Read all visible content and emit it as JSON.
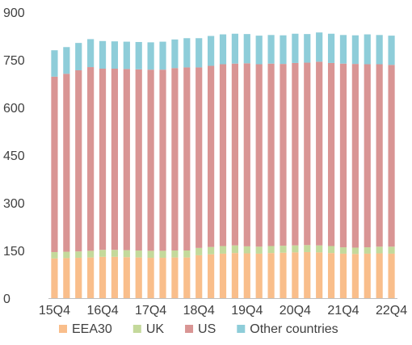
{
  "chart_data": {
    "type": "bar",
    "stacked": true,
    "categories": [
      "15Q4",
      "16Q1",
      "16Q2",
      "16Q3",
      "16Q4",
      "17Q1",
      "17Q2",
      "17Q3",
      "17Q4",
      "18Q1",
      "18Q2",
      "18Q3",
      "18Q4",
      "19Q1",
      "19Q2",
      "19Q3",
      "19Q4",
      "20Q1",
      "20Q2",
      "20Q3",
      "20Q4",
      "21Q1",
      "21Q2",
      "21Q3",
      "21Q4",
      "22Q1",
      "22Q2",
      "22Q3",
      "22Q4"
    ],
    "x_tick_labels": [
      "15Q4",
      "16Q4",
      "17Q4",
      "18Q4",
      "19Q4",
      "20Q4",
      "21Q4",
      "22Q4"
    ],
    "y_ticks": [
      0,
      150,
      300,
      450,
      600,
      750,
      900
    ],
    "ylim": [
      0,
      900
    ],
    "legend_position": "bottom",
    "series": [
      {
        "name": "EEA30",
        "color": "#f9be8b",
        "values": [
          125,
          126,
          127,
          128,
          130,
          130,
          129,
          128,
          127,
          127,
          128,
          128,
          135,
          138,
          140,
          142,
          141,
          140,
          142,
          143,
          144,
          145,
          144,
          142,
          140,
          139,
          140,
          141,
          140
        ]
      },
      {
        "name": "UK",
        "color": "#c4d99b",
        "values": [
          20,
          20,
          20,
          21,
          22,
          22,
          22,
          22,
          22,
          22,
          22,
          22,
          23,
          23,
          24,
          24,
          22,
          22,
          22,
          22,
          22,
          22,
          22,
          22,
          20,
          20,
          20,
          21,
          22
        ]
      },
      {
        "name": "US",
        "color": "#d99594",
        "values": [
          552,
          560,
          570,
          578,
          570,
          570,
          570,
          570,
          570,
          570,
          574,
          576,
          568,
          570,
          572,
          572,
          576,
          574,
          574,
          572,
          574,
          574,
          578,
          576,
          578,
          578,
          576,
          574,
          572
        ]
      },
      {
        "name": "Other countries",
        "color": "#8ecdd9",
        "values": [
          83,
          84,
          86,
          88,
          87,
          86,
          86,
          86,
          86,
          88,
          90,
          92,
          92,
          94,
          94,
          94,
          92,
          90,
          90,
          90,
          92,
          90,
          92,
          92,
          90,
          90,
          94,
          92,
          92
        ]
      }
    ]
  }
}
